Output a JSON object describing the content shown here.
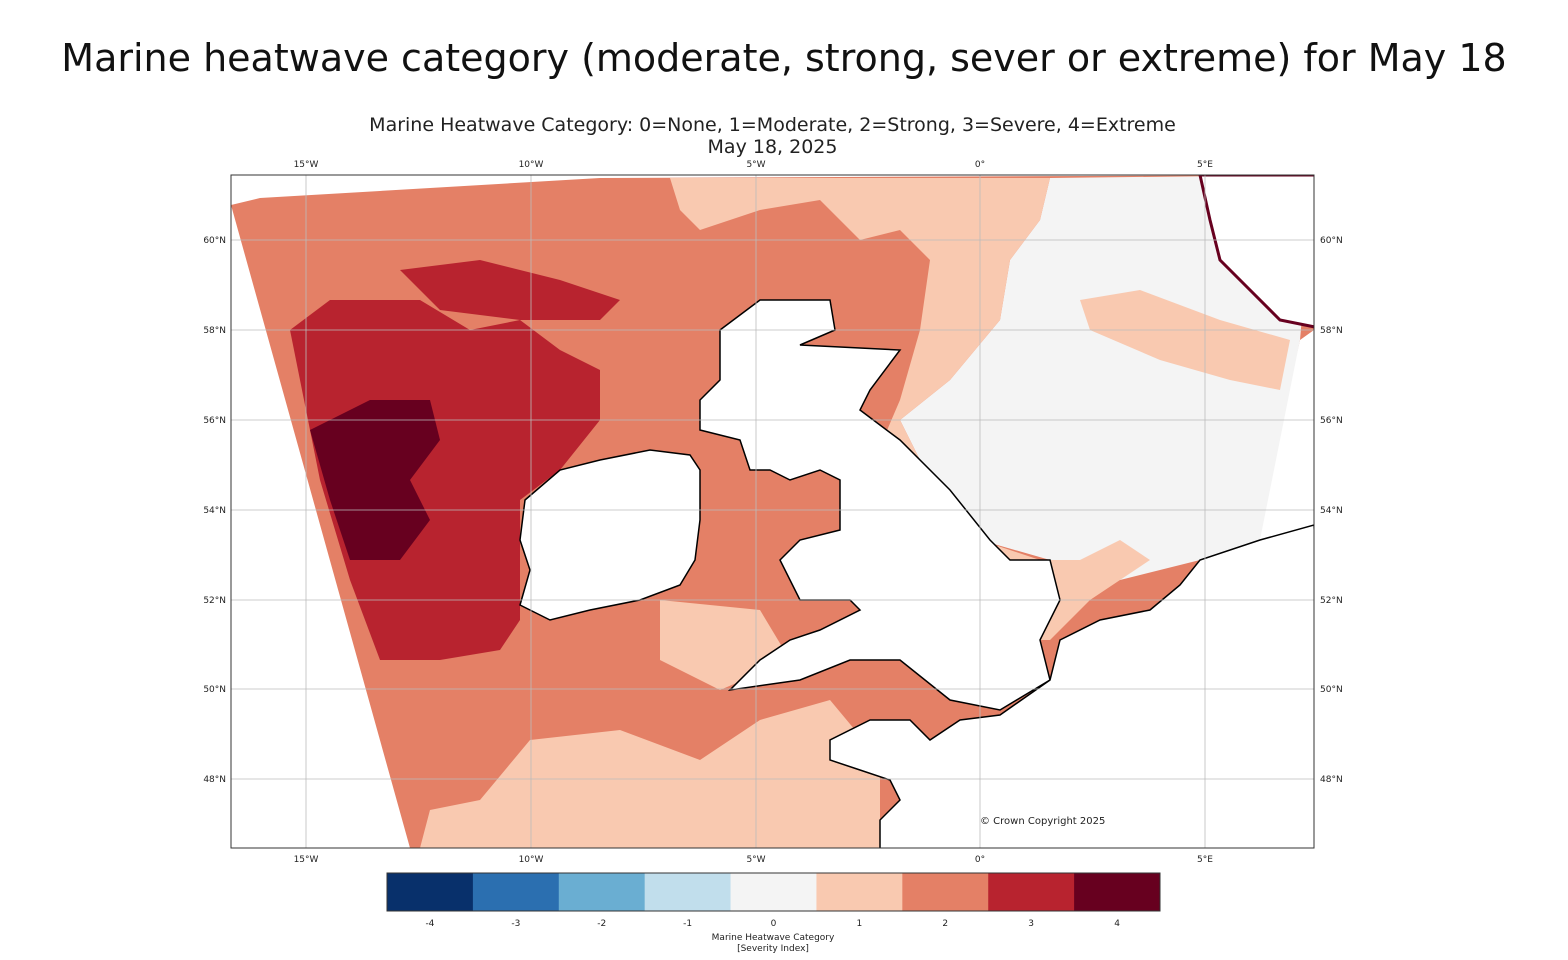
{
  "page_title": "Marine heatwave category (moderate, strong, sever or extreme) for May 18",
  "map": {
    "title": "Marine Heatwave Category: 0=None, 1=Moderate, 2=Strong, 3=Severe, 4=Extreme",
    "date": "May 18, 2025",
    "lon_labels": [
      "15°W",
      "10°W",
      "5°W",
      "0°",
      "5°E"
    ],
    "lat_labels": [
      "60°N",
      "58°N",
      "56°N",
      "54°N",
      "52°N",
      "50°N",
      "48°N"
    ],
    "copyright": "© Crown Copyright 2025",
    "extent": {
      "lon": [
        -16.7,
        7.4
      ],
      "lat": [
        46.5,
        61.5
      ]
    }
  },
  "colorbar": {
    "ticks": [
      "-4",
      "-3",
      "-2",
      "-1",
      "0",
      "1",
      "2",
      "3",
      "4"
    ],
    "colors": [
      "#08306b",
      "#2b6fb0",
      "#6aaed2",
      "#c1deec",
      "#f4f4f4",
      "#f9c9b0",
      "#e48066",
      "#b8232f",
      "#67001f"
    ],
    "label": "Marine Heatwave Category",
    "units": "[Severity Index]"
  }
}
